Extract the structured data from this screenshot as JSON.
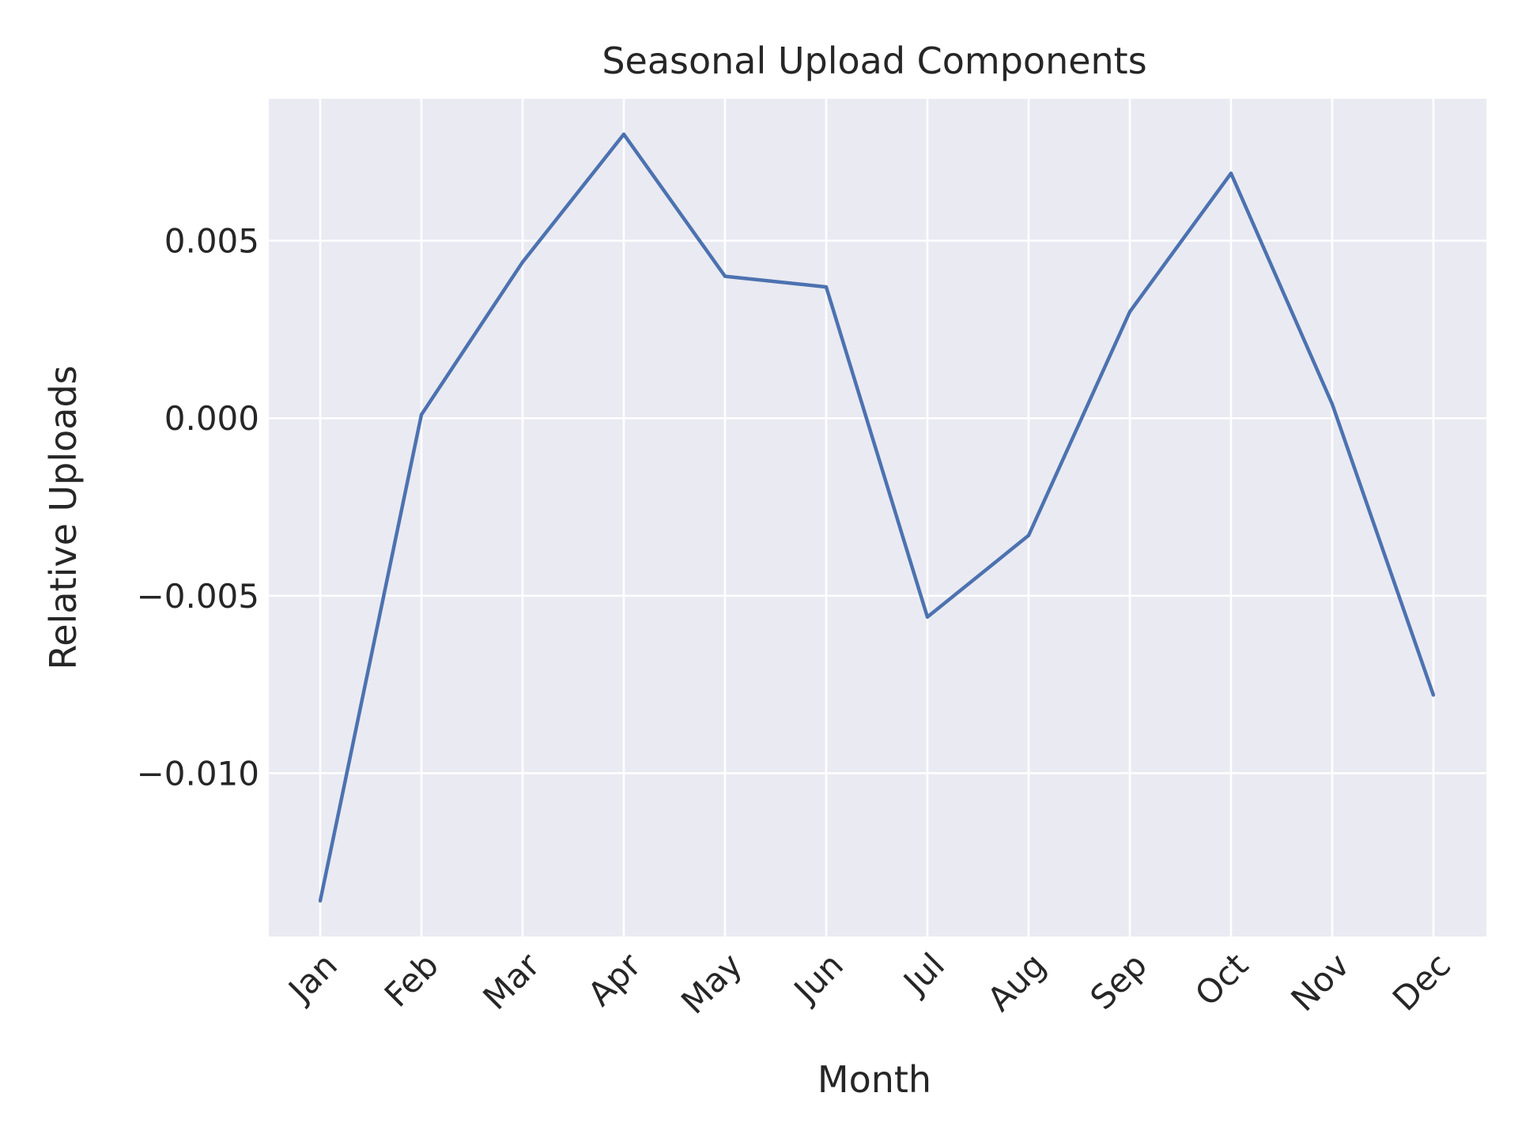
{
  "chart_data": {
    "type": "line",
    "title": "Seasonal Upload Components",
    "xlabel": "Month",
    "ylabel": "Relative Uploads",
    "categories": [
      "Jan",
      "Feb",
      "Mar",
      "Apr",
      "May",
      "Jun",
      "Jul",
      "Aug",
      "Sep",
      "Oct",
      "Nov",
      "Dec"
    ],
    "series": [
      {
        "values": [
          -0.0136,
          0.0001,
          0.0044,
          0.008,
          0.004,
          0.0037,
          -0.0056,
          -0.0033,
          0.003,
          0.0069,
          0.0004,
          -0.0078
        ],
        "color": "#4c72b0"
      }
    ],
    "yticks": [
      0.005,
      0.0,
      -0.005,
      -0.01
    ],
    "ytick_labels": [
      "0.005",
      "0.000",
      "−0.005",
      "−0.010"
    ],
    "ylim": [
      -0.0146,
      0.009
    ],
    "grid": true,
    "background_color": "#eaeaf2",
    "grid_color": "#ffffff"
  }
}
